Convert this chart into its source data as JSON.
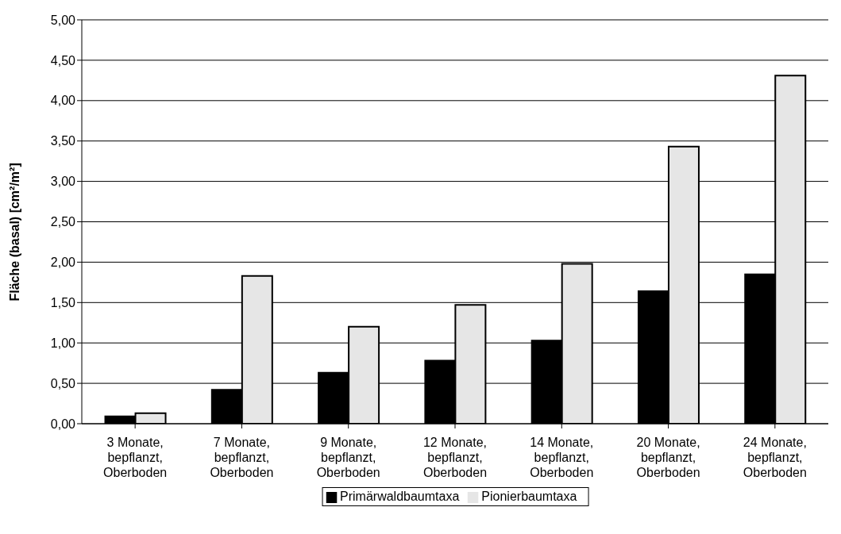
{
  "chart_data": {
    "type": "bar",
    "ylabel": "Fläche (basal) [cm²/m²]",
    "categories": [
      "3 Monate, bepflanzt, Oberboden",
      "7 Monate, bepflanzt, Oberboden",
      "9 Monate, bepflanzt, Oberboden",
      "12 Monate, bepflanzt, Oberboden",
      "14 Monate, bepflanzt, Oberboden",
      "20 Monate, bepflanzt, Oberboden",
      "24 Monate, bepflanzt, Oberboden"
    ],
    "series": [
      {
        "name": "Primärwaldbaumtaxa",
        "color": "#000000",
        "values": [
          0.09,
          0.42,
          0.63,
          0.78,
          1.03,
          1.64,
          1.85
        ]
      },
      {
        "name": "Pionierbaumtaxa",
        "color": "#e6e6e6",
        "values": [
          0.13,
          1.83,
          1.2,
          1.47,
          1.98,
          3.43,
          4.31
        ]
      }
    ],
    "ylim": [
      0,
      5
    ],
    "yticks": [
      {
        "value": 0,
        "label": "0,00"
      },
      {
        "value": 0.5,
        "label": "0,50"
      },
      {
        "value": 1,
        "label": "1,00"
      },
      {
        "value": 1.5,
        "label": "1,50"
      },
      {
        "value": 2,
        "label": "2,00"
      },
      {
        "value": 2.5,
        "label": "2,50"
      },
      {
        "value": 3,
        "label": "3,00"
      },
      {
        "value": 3.5,
        "label": "3,50"
      },
      {
        "value": 4,
        "label": "4,00"
      },
      {
        "value": 4.5,
        "label": "4,50"
      },
      {
        "value": 5,
        "label": "5,00"
      }
    ],
    "grid": "y",
    "legend": "bottom"
  }
}
